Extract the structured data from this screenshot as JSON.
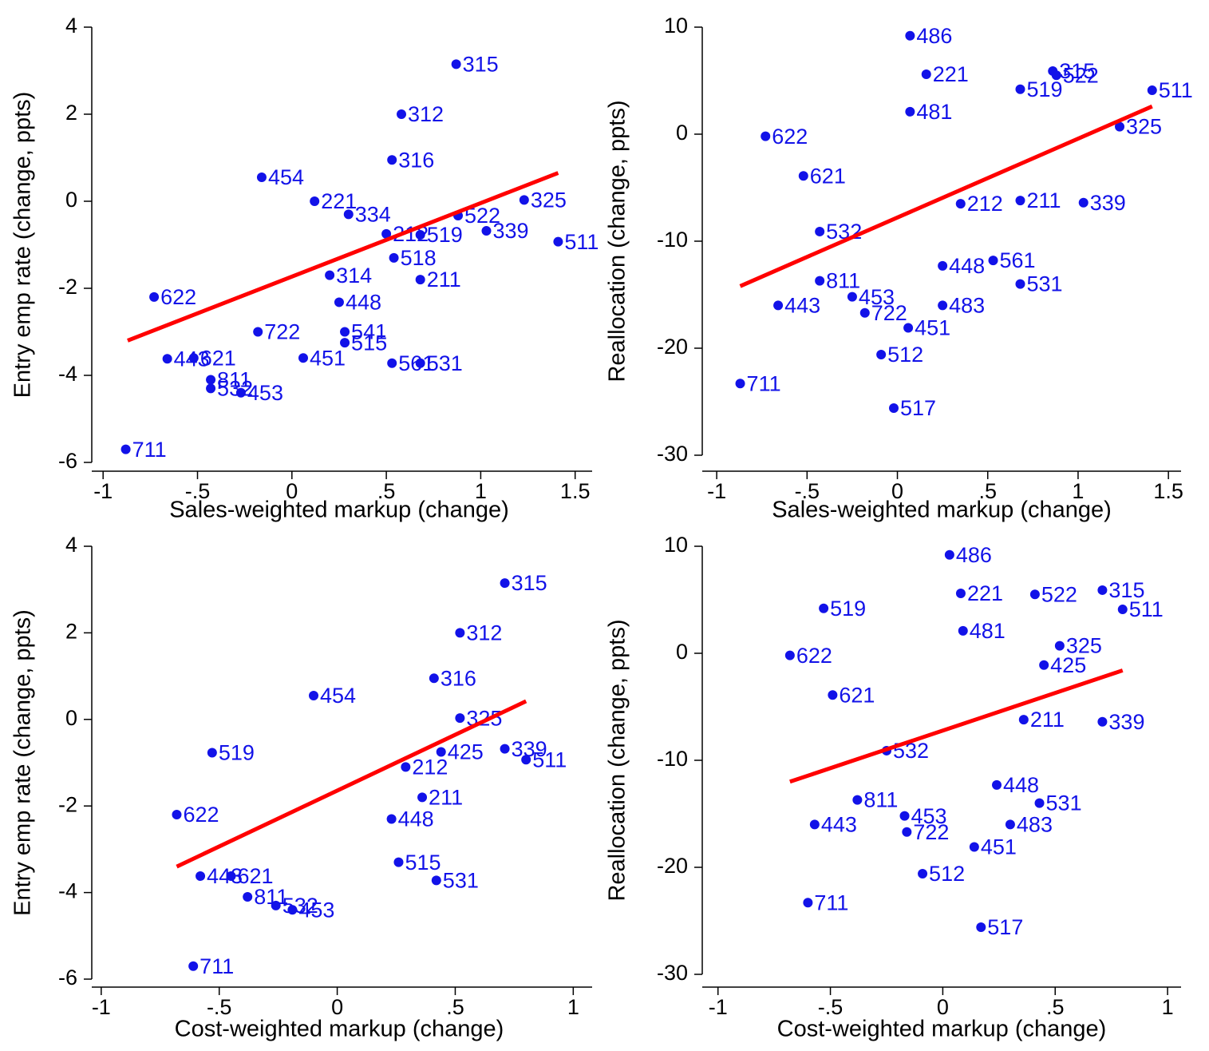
{
  "chart_data": [
    {
      "type": "scatter",
      "x_label": "Sales-weighted markup (change)",
      "y_label": "Entry emp rate (change, ppts)",
      "xlim": [
        -1.06,
        1.59
      ],
      "ylim": [
        -6,
        4
      ],
      "xticks": [
        -1,
        {
          "value": -0.5,
          "label": "-.5"
        },
        0,
        {
          "value": 0.5,
          "label": ".5"
        },
        1,
        1.5
      ],
      "yticks": [
        -6,
        -4,
        -2,
        0,
        2,
        4
      ],
      "color": "#1212e8",
      "labels": [
        "315",
        "312",
        "316",
        "454",
        "325",
        "522",
        "339",
        "519",
        "511",
        "518",
        "211",
        "622",
        "443",
        "621",
        "811",
        "532",
        "453",
        "711",
        "451",
        "561",
        "531",
        "448",
        "541",
        "515",
        "722",
        "212",
        "221",
        "334",
        "314"
      ],
      "x": [
        0.87,
        0.58,
        0.53,
        -0.16,
        1.23,
        0.88,
        1.03,
        0.68,
        1.41,
        0.54,
        0.68,
        -0.73,
        -0.66,
        -0.52,
        -0.43,
        -0.43,
        -0.27,
        -0.88,
        0.06,
        0.53,
        0.68,
        0.25,
        0.28,
        0.28,
        -0.18,
        0.5,
        0.12,
        0.3,
        0.2
      ],
      "values": [
        3.15,
        2.0,
        0.95,
        0.55,
        0.03,
        -0.33,
        -0.68,
        -0.77,
        -0.93,
        -1.3,
        -1.8,
        -2.2,
        -3.62,
        -3.6,
        -4.1,
        -4.3,
        -4.4,
        -5.7,
        -3.6,
        -3.72,
        -3.72,
        -2.32,
        -3.0,
        -3.25,
        -3.0,
        -0.75,
        0.0,
        -0.3,
        -1.7
      ],
      "fit": {
        "x": [
          -0.87,
          1.41
        ],
        "y": [
          -3.2,
          0.65
        ],
        "color": "#ff0000"
      }
    },
    {
      "type": "scatter",
      "x_label": "Sales-weighted markup (change)",
      "y_label": "Reallocation (change, ppts)",
      "xlim": [
        -1.08,
        1.57
      ],
      "ylim": [
        -30,
        10
      ],
      "xticks": [
        -1,
        {
          "value": -0.5,
          "label": "-.5"
        },
        0,
        {
          "value": 0.5,
          "label": ".5"
        },
        1,
        1.5
      ],
      "yticks": [
        -30,
        -20,
        -10,
        0,
        10
      ],
      "color": "#1212e8",
      "labels": [
        "486",
        "221",
        "315",
        "522",
        "519",
        "511",
        "325",
        "622",
        "481",
        "621",
        "211",
        "339",
        "212",
        "532",
        "561",
        "531",
        "811",
        "443",
        "453",
        "722",
        "451",
        "512",
        "711",
        "517",
        "448",
        "483"
      ],
      "x": [
        0.07,
        0.16,
        0.86,
        0.88,
        0.68,
        1.41,
        1.23,
        -0.73,
        0.07,
        -0.52,
        0.68,
        1.03,
        0.35,
        -0.43,
        0.53,
        0.68,
        -0.43,
        -0.66,
        -0.25,
        -0.18,
        0.06,
        -0.09,
        -0.87,
        -0.02,
        0.25,
        0.25
      ],
      "values": [
        9.2,
        5.6,
        5.9,
        5.5,
        4.2,
        4.1,
        0.7,
        -0.2,
        2.1,
        -3.9,
        -6.2,
        -6.4,
        -6.5,
        -9.1,
        -11.8,
        -14.0,
        -13.7,
        -16.0,
        -15.2,
        -16.7,
        -18.1,
        -20.6,
        -23.3,
        -25.6,
        -12.3,
        -16.0
      ],
      "fit": {
        "x": [
          -0.87,
          1.41
        ],
        "y": [
          -14.2,
          2.6
        ],
        "color": "#ff0000"
      }
    },
    {
      "type": "scatter",
      "x_label": "Cost-weighted markup (change)",
      "y_label": "Entry emp rate (change, ppts)",
      "xlim": [
        -1.04,
        1.08
      ],
      "ylim": [
        -6,
        4
      ],
      "xticks": [
        -1,
        {
          "value": -0.5,
          "label": "-.5"
        },
        0,
        {
          "value": 0.5,
          "label": ".5"
        },
        1
      ],
      "yticks": [
        -6,
        -4,
        -2,
        0,
        2,
        4
      ],
      "color": "#1212e8",
      "labels": [
        "315",
        "312",
        "316",
        "454",
        "325",
        "339",
        "511",
        "519",
        "425",
        "211",
        "622",
        "443",
        "621",
        "811",
        "532",
        "453",
        "711",
        "515",
        "531",
        "212",
        "448"
      ],
      "x": [
        0.71,
        0.52,
        0.41,
        -0.1,
        0.52,
        0.71,
        0.8,
        -0.53,
        0.44,
        0.36,
        -0.68,
        -0.58,
        -0.45,
        -0.38,
        -0.26,
        -0.19,
        -0.61,
        0.26,
        0.42,
        0.29,
        0.23
      ],
      "values": [
        3.15,
        2.0,
        0.95,
        0.55,
        0.03,
        -0.68,
        -0.93,
        -0.77,
        -0.75,
        -1.8,
        -2.2,
        -3.62,
        -3.62,
        -4.1,
        -4.3,
        -4.4,
        -5.7,
        -3.3,
        -3.72,
        -1.1,
        -2.3
      ],
      "fit": {
        "x": [
          -0.68,
          0.8
        ],
        "y": [
          -3.4,
          0.42
        ],
        "color": "#ff0000"
      }
    },
    {
      "type": "scatter",
      "x_label": "Cost-weighted markup (change)",
      "y_label": "Reallocation (change, ppts)",
      "xlim": [
        -1.07,
        1.06
      ],
      "ylim": [
        -30,
        10
      ],
      "xticks": [
        -1,
        {
          "value": -0.5,
          "label": "-.5"
        },
        0,
        {
          "value": 0.5,
          "label": ".5"
        },
        1
      ],
      "yticks": [
        -30,
        -20,
        -10,
        0,
        10
      ],
      "color": "#1212e8",
      "labels": [
        "486",
        "221",
        "522",
        "315",
        "511",
        "519",
        "325",
        "622",
        "481",
        "425",
        "621",
        "339",
        "211",
        "532",
        "531",
        "811",
        "443",
        "453",
        "722",
        "451",
        "512",
        "711",
        "517",
        "483",
        "448"
      ],
      "x": [
        0.03,
        0.08,
        0.41,
        0.71,
        0.8,
        -0.53,
        0.52,
        -0.68,
        0.09,
        0.45,
        -0.49,
        0.71,
        0.36,
        -0.25,
        0.43,
        -0.38,
        -0.57,
        -0.17,
        -0.16,
        0.14,
        -0.09,
        -0.6,
        0.17,
        0.3,
        0.24
      ],
      "values": [
        9.2,
        5.6,
        5.5,
        5.9,
        4.1,
        4.2,
        0.7,
        -0.2,
        2.1,
        -1.1,
        -3.9,
        -6.4,
        -6.2,
        -9.1,
        -14.0,
        -13.7,
        -16.0,
        -15.2,
        -16.7,
        -18.1,
        -20.6,
        -23.3,
        -25.6,
        -16.0,
        -12.3
      ],
      "fit": {
        "x": [
          -0.68,
          0.8
        ],
        "y": [
          -12.0,
          -1.6
        ],
        "color": "#ff0000"
      }
    }
  ]
}
